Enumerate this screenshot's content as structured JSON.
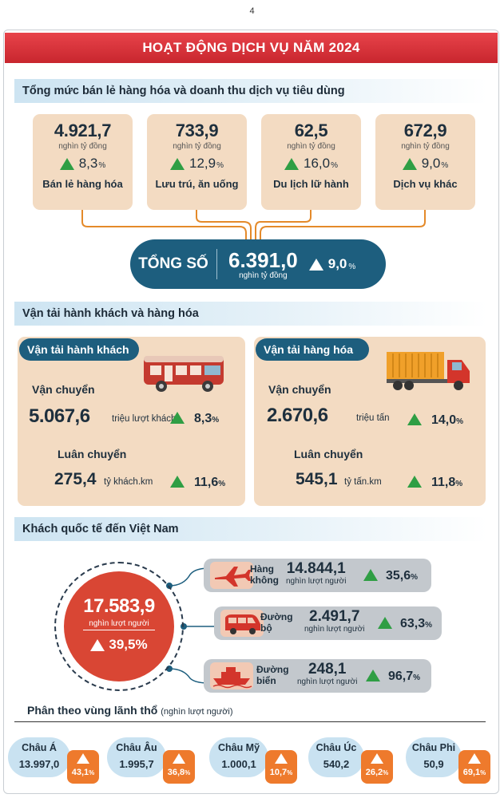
{
  "page_number": "4",
  "title": "HOẠT ĐỘNG DỊCH VỤ NĂM 2024",
  "retail": {
    "heading": "Tổng mức bán lẻ hàng hóa và doanh thu dịch vụ tiêu dùng",
    "cards": [
      {
        "value": "4.921,7",
        "unit": "nghìn tỷ đồng",
        "change": "8,3",
        "pct": "%",
        "label": "Bán lẻ hàng hóa"
      },
      {
        "value": "733,9",
        "unit": "nghìn tỷ đồng",
        "change": "12,9",
        "pct": "%",
        "label": "Lưu trú, ăn uống"
      },
      {
        "value": "62,5",
        "unit": "nghìn tỷ đồng",
        "change": "16,0",
        "pct": "%",
        "label": "Du lịch lữ hành"
      },
      {
        "value": "672,9",
        "unit": "nghìn tỷ đồng",
        "change": "9,0",
        "pct": "%",
        "label": "Dịch vụ khác"
      }
    ],
    "total": {
      "label": "TỔNG SỐ",
      "value": "6.391,0",
      "unit": "nghìn tỷ đồng",
      "change": "9,0",
      "pct": "%"
    }
  },
  "transport": {
    "heading": "Vận tải hành khách và hàng hóa",
    "passenger": {
      "title": "Vận tải hành khách",
      "carry_label": "Vận chuyển",
      "carry_value": "5.067,6",
      "carry_unit": "triệu lượt khách",
      "carry_change": "8,3",
      "rotation_label": "Luân chuyển",
      "rotation_value": "275,4",
      "rotation_unit": "tỷ khách.km",
      "rotation_change": "11,6",
      "pct": "%"
    },
    "cargo": {
      "title": "Vận tải hàng hóa",
      "carry_label": "Vận chuyển",
      "carry_value": "2.670,6",
      "carry_unit": "triệu tấn",
      "carry_change": "14,0",
      "rotation_label": "Luân chuyển",
      "rotation_value": "545,1",
      "rotation_unit": "tỷ tấn.km",
      "rotation_change": "11,8",
      "pct": "%"
    }
  },
  "visitors": {
    "heading": "Khách quốc tế đến Việt Nam",
    "total_value": "17.583,9",
    "total_unit": "nghìn lượt người",
    "total_change": "39,5%",
    "routes": [
      {
        "name_line1": "Hàng",
        "name_line2": "không",
        "value": "14.844,1",
        "unit": "nghìn lượt người",
        "change": "35,6",
        "pct": "%",
        "icon": "airplane-icon"
      },
      {
        "name_line1": "Đường",
        "name_line2": "bộ",
        "value": "2.491,7",
        "unit": "nghìn lượt người",
        "change": "63,3",
        "pct": "%",
        "icon": "van-icon"
      },
      {
        "name_line1": "Đường",
        "name_line2": "biển",
        "value": "248,1",
        "unit": "nghìn lượt người",
        "change": "96,7",
        "pct": "%",
        "icon": "ship-icon"
      }
    ],
    "by_region_title": "Phân theo vùng lãnh thổ",
    "by_region_unit": "(nghìn lượt người)",
    "regions": [
      {
        "name": "Châu Á",
        "value": "13.997,0",
        "change": "43,1",
        "pct": "%"
      },
      {
        "name": "Châu Âu",
        "value": "1.995,7",
        "change": "36,8",
        "pct": "%"
      },
      {
        "name": "Châu Mỹ",
        "value": "1.000,1",
        "change": "10,7",
        "pct": "%"
      },
      {
        "name": "Châu Úc",
        "value": "540,2",
        "change": "26,2",
        "pct": "%"
      },
      {
        "name": "Châu Phi",
        "value": "50,9",
        "change": "69,1",
        "pct": "%"
      }
    ]
  },
  "colors": {
    "banner": "#d8343b",
    "teal": "#1d5e7e",
    "card": "#f3dbc2",
    "orange": "#ee7a2c",
    "green": "#2f9e44",
    "red_circle": "#d94634"
  }
}
